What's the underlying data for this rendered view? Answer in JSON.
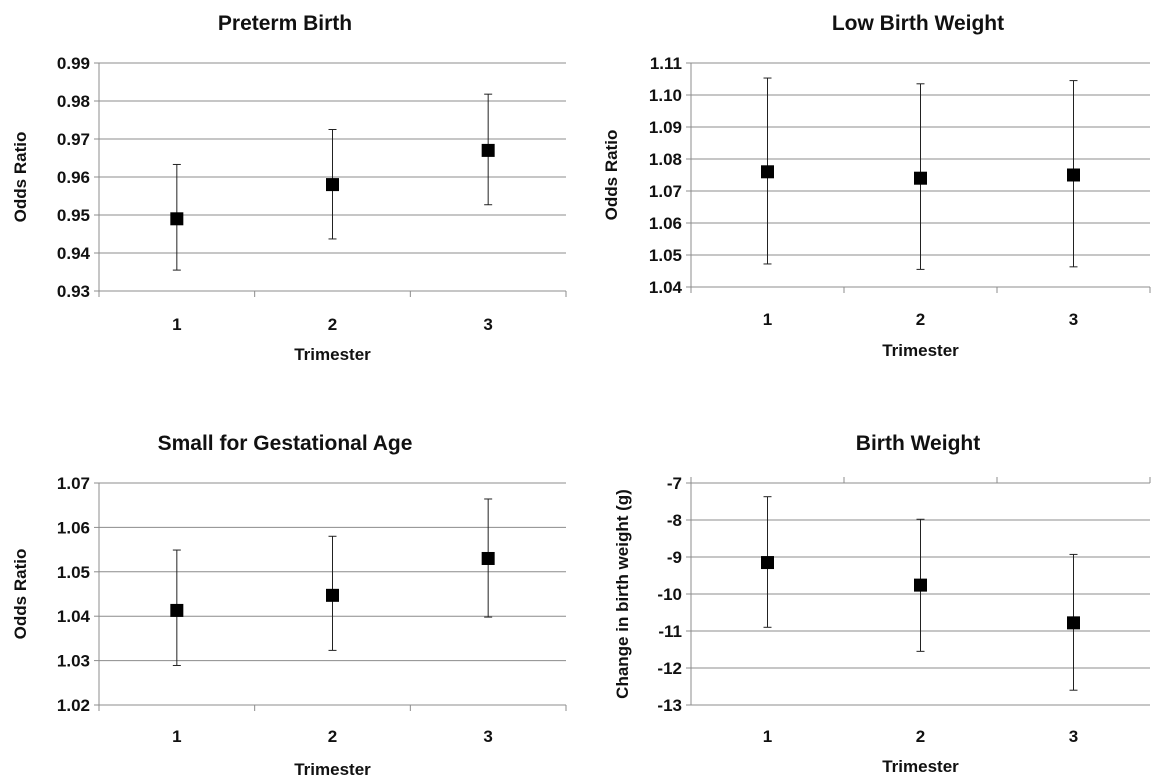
{
  "chart_data": [
    {
      "type": "scatter",
      "title": "Preterm Birth",
      "xlabel": "Trimester",
      "ylabel": "Odds Ratio",
      "categories": [
        "1",
        "2",
        "3"
      ],
      "values": [
        0.949,
        0.958,
        0.967
      ],
      "lower": [
        0.9355,
        0.9437,
        0.9527
      ],
      "upper": [
        0.9633,
        0.9725,
        0.9818
      ],
      "ylim": [
        0.93,
        0.99
      ],
      "yticks": [
        "0.93",
        "0.94",
        "0.95",
        "0.96",
        "0.97",
        "0.98",
        "0.99"
      ],
      "grid": true
    },
    {
      "type": "scatter",
      "title": "Low Birth Weight",
      "xlabel": "Trimester",
      "ylabel": "Odds Ratio",
      "categories": [
        "1",
        "2",
        "3"
      ],
      "values": [
        1.076,
        1.074,
        1.075
      ],
      "lower": [
        1.0472,
        1.0455,
        1.0463
      ],
      "upper": [
        1.1053,
        1.1035,
        1.1045
      ],
      "ylim": [
        1.04,
        1.11
      ],
      "yticks": [
        "1.04",
        "1.05",
        "1.06",
        "1.07",
        "1.08",
        "1.09",
        "1.10",
        "1.11"
      ],
      "grid": true
    },
    {
      "type": "scatter",
      "title": "Small for Gestational Age",
      "xlabel": "Trimester",
      "ylabel": "Odds Ratio",
      "categories": [
        "1",
        "2",
        "3"
      ],
      "values": [
        1.0413,
        1.0447,
        1.053
      ],
      "lower": [
        1.0289,
        1.0323,
        1.0398
      ],
      "upper": [
        1.0549,
        1.058,
        1.0664
      ],
      "ylim": [
        1.02,
        1.07
      ],
      "yticks": [
        "1.02",
        "1.03",
        "1.04",
        "1.05",
        "1.06",
        "1.07"
      ],
      "grid": true
    },
    {
      "type": "scatter",
      "title": "Birth Weight",
      "xlabel": "Trimester",
      "ylabel": "Change in birth weight (g)",
      "categories": [
        "1",
        "2",
        "3"
      ],
      "values": [
        -9.15,
        -9.76,
        -10.78
      ],
      "lower": [
        -10.9,
        -11.55,
        -12.6
      ],
      "upper": [
        -7.37,
        -7.98,
        -8.93
      ],
      "ylim": [
        -13,
        -7
      ],
      "yticks": [
        "-13",
        "-12",
        "-11",
        "-10",
        "-9",
        "-8",
        "-7"
      ],
      "xaxis_at_top": true,
      "grid": true
    }
  ]
}
